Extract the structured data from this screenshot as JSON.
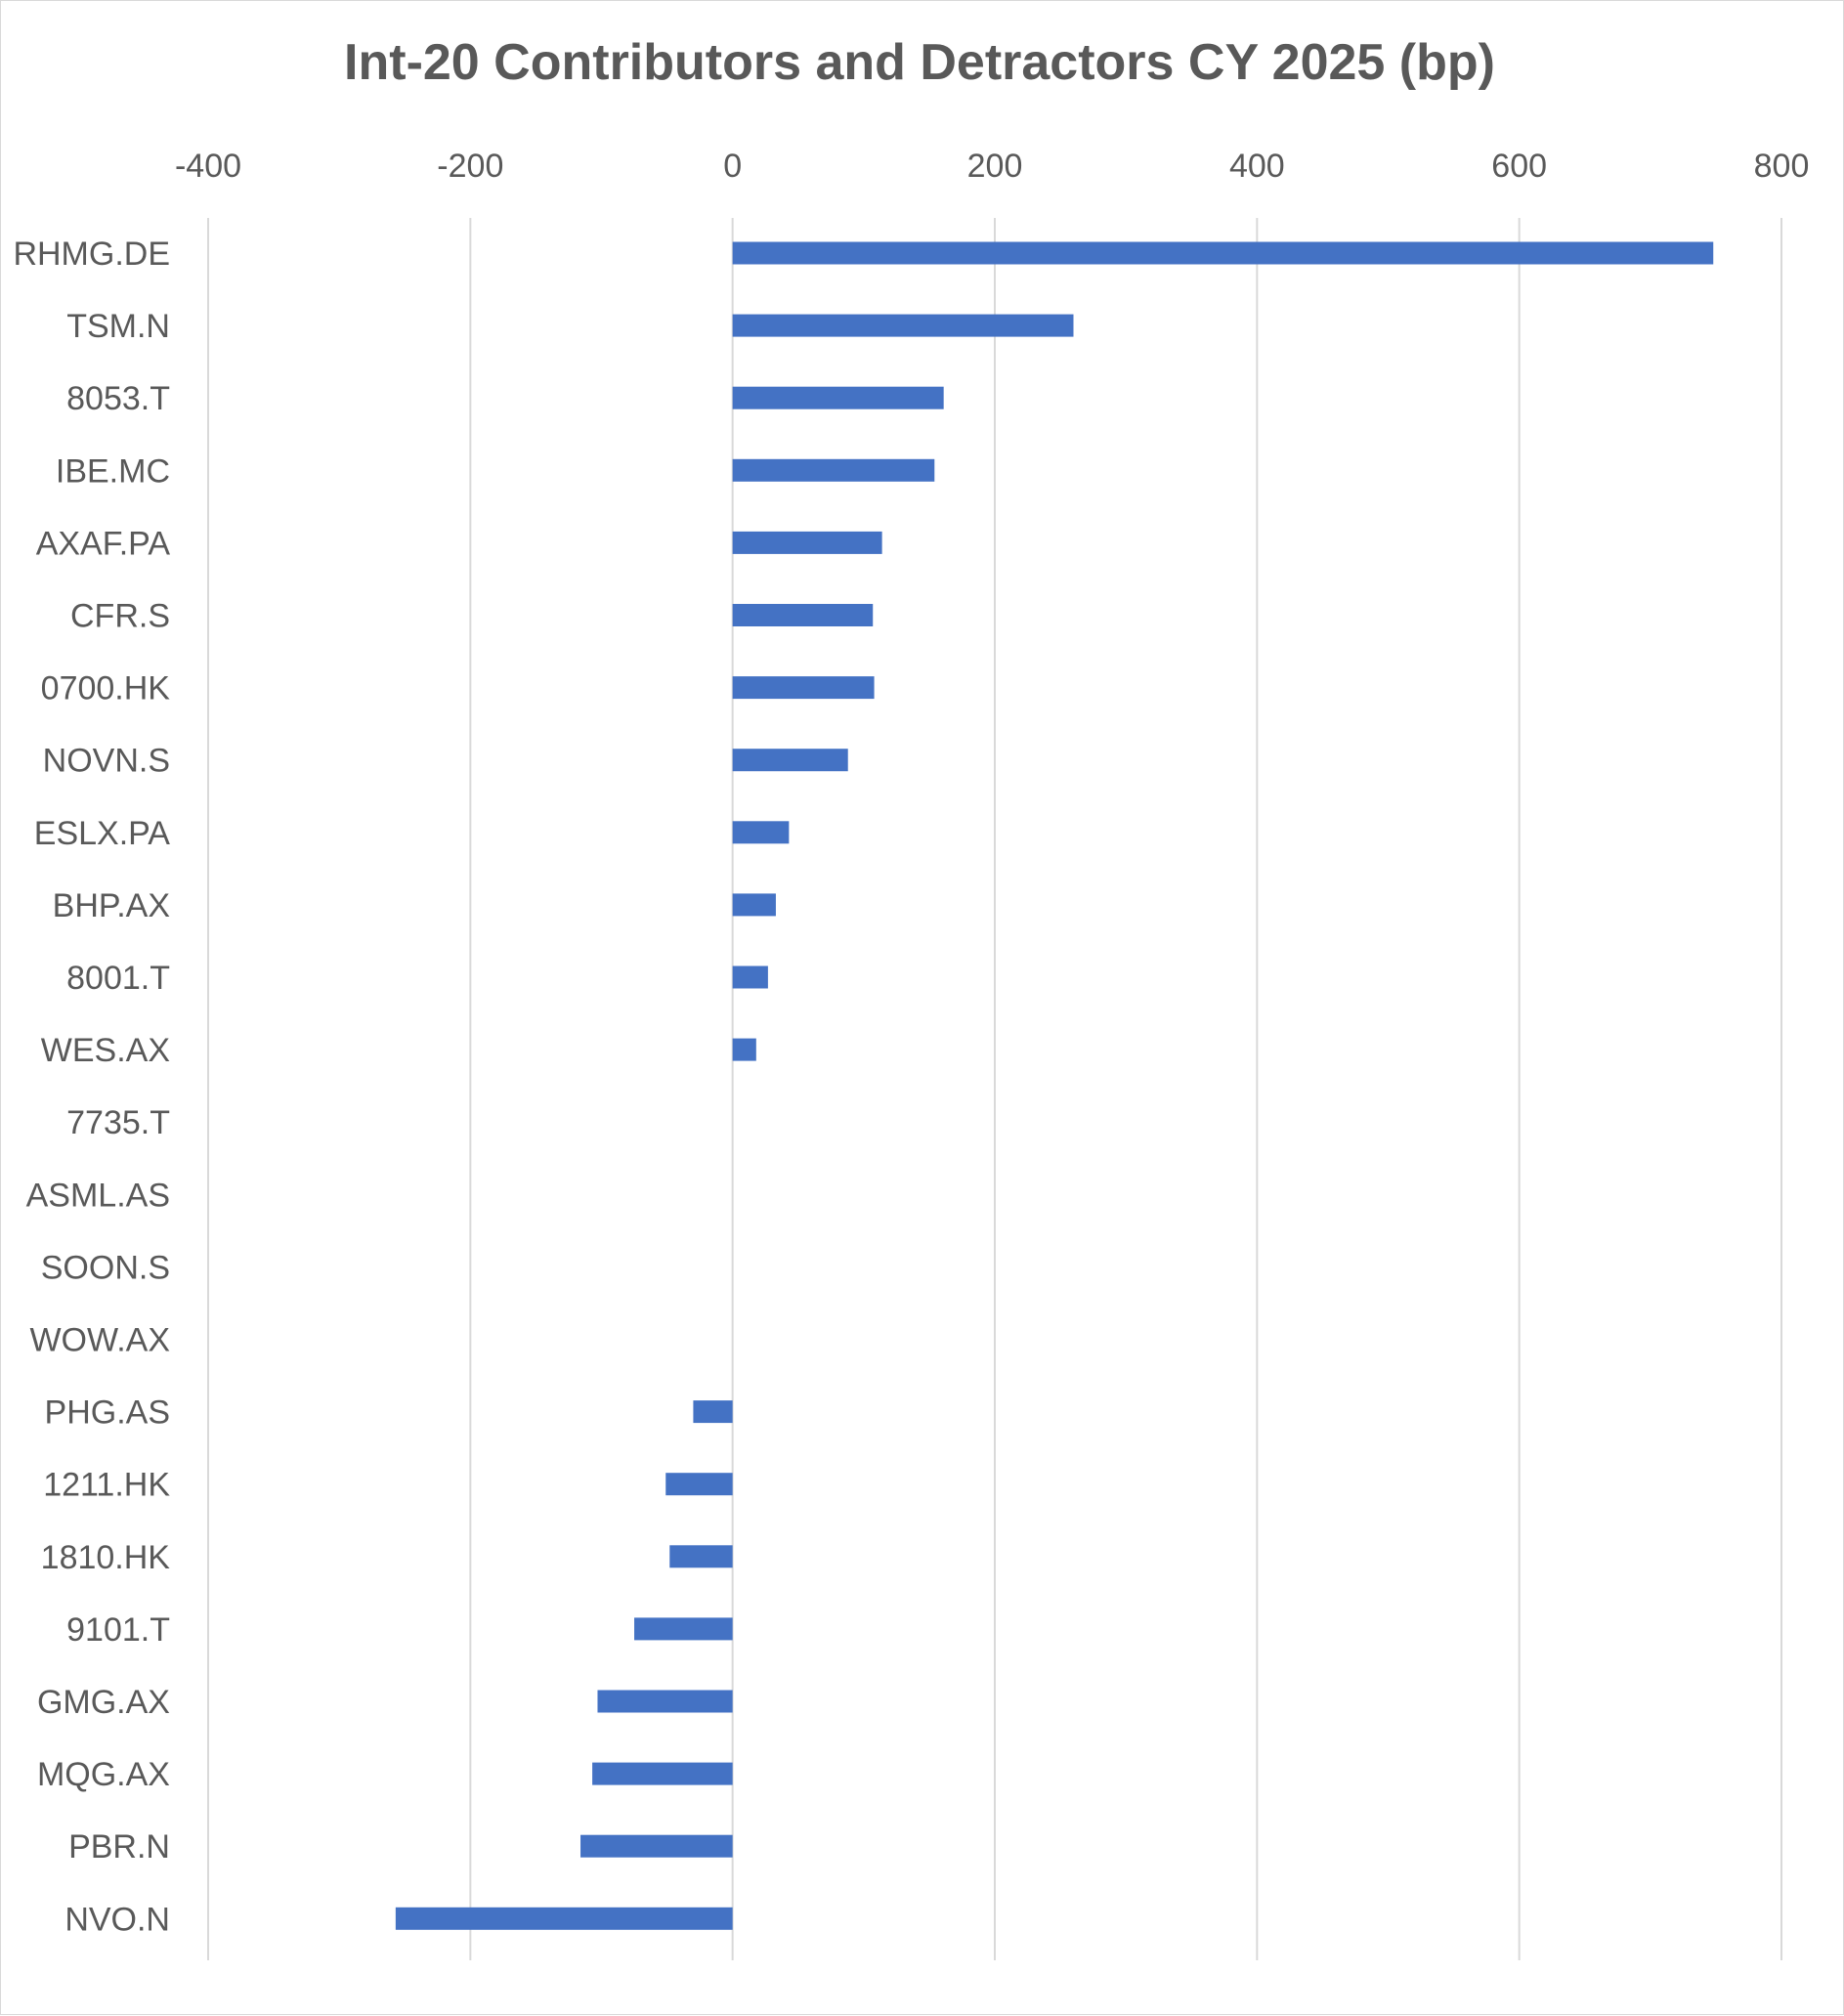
{
  "chart_data": {
    "type": "bar",
    "orientation": "horizontal",
    "title": "Int-20 Contributors and Detractors CY 2025 (bp)",
    "xlabel": "",
    "ylabel": "",
    "xlim": [
      -400,
      800
    ],
    "x_ticks": [
      -400,
      -200,
      0,
      200,
      400,
      600,
      800
    ],
    "x_axis_position": "top",
    "grid": "vertical",
    "legend": "none",
    "bar_color": "#4472c4",
    "categories": [
      "RHMG.DE",
      "TSM.N",
      "8053.T",
      "IBE.MC",
      "AXAF.PA",
      "CFR.S",
      "0700.HK",
      "NOVN.S",
      "ESLX.PA",
      "BHP.AX",
      "8001.T",
      "WES.AX",
      "7735.T",
      "ASML.AS",
      "SOON.S",
      "WOW.AX",
      "PHG.AS",
      "1211.HK",
      "1810.HK",
      "9101.T",
      "GMG.AX",
      "MQG.AX",
      "PBR.N",
      "NVO.N"
    ],
    "values": [
      748,
      260,
      161,
      154,
      114,
      107,
      108,
      88,
      43,
      33,
      27,
      18,
      0,
      0,
      0,
      0,
      -30,
      -51,
      -48,
      -75,
      -103,
      -107,
      -116,
      -257
    ]
  }
}
